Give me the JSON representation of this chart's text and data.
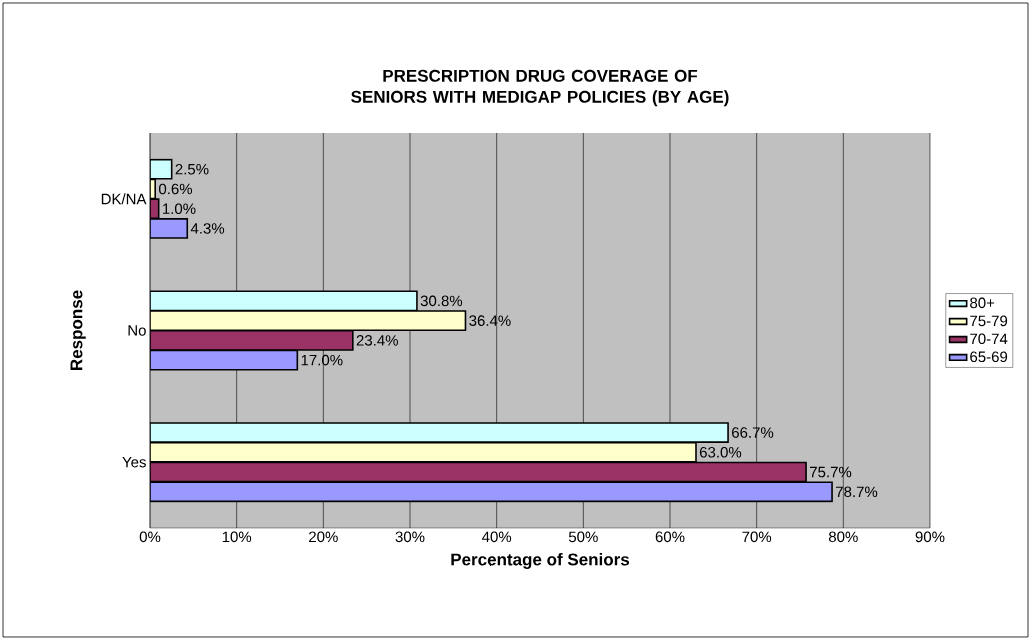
{
  "chart_data": {
    "type": "bar",
    "orientation": "horizontal",
    "title": "PRESCRIPTION DRUG COVERAGE OF SENIORS WITH MEDIGAP POLICIES (BY AGE)",
    "xlabel": "Percentage of Seniors",
    "ylabel": "Response",
    "categories": [
      "DK/NA",
      "No",
      "Yes"
    ],
    "series": [
      {
        "name": "80+",
        "color": "#ccffff",
        "values": [
          2.5,
          30.8,
          66.7
        ],
        "value_labels": [
          "2.5%",
          "30.8%",
          "66.7%"
        ]
      },
      {
        "name": "75-79",
        "color": "#ffffcc",
        "values": [
          0.6,
          36.4,
          63.0
        ],
        "value_labels": [
          "0.6%",
          "36.4%",
          "63.0%"
        ]
      },
      {
        "name": "70-74",
        "color": "#993366",
        "values": [
          1.0,
          23.4,
          75.7
        ],
        "value_labels": [
          "1.0%",
          "23.4%",
          "75.7%"
        ]
      },
      {
        "name": "65-69",
        "color": "#9999ff",
        "values": [
          4.3,
          17.0,
          78.7
        ],
        "value_labels": [
          "4.3%",
          "17.0%",
          "78.7%"
        ]
      }
    ],
    "xlim": [
      0,
      90
    ],
    "xticks": [
      {
        "value": 0,
        "label": "0%"
      },
      {
        "value": 10,
        "label": "10%"
      },
      {
        "value": 20,
        "label": "20%"
      },
      {
        "value": 30,
        "label": "30%"
      },
      {
        "value": 40,
        "label": "40%"
      },
      {
        "value": 50,
        "label": "50%"
      },
      {
        "value": 60,
        "label": "60%"
      },
      {
        "value": 70,
        "label": "70%"
      },
      {
        "value": 80,
        "label": "80%"
      },
      {
        "value": 90,
        "label": "90%"
      }
    ],
    "grid": "x",
    "legend": "right"
  }
}
